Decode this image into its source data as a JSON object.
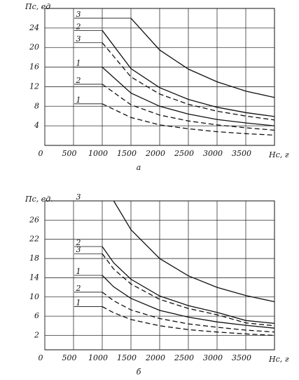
{
  "chart_data": [
    {
      "type": "line",
      "x_label": "Нс, г",
      "y_label": "Пс, ед",
      "caption": "а",
      "x": [
        1000,
        1500,
        2000,
        2500,
        3000,
        3500,
        4000
      ],
      "xlim": [
        0,
        4000
      ],
      "xticks": [
        0,
        500,
        1000,
        1500,
        2000,
        2500,
        3000,
        3500
      ],
      "ylim": [
        0,
        28
      ],
      "yticks": [
        4,
        8,
        12,
        16,
        20,
        24
      ],
      "grid": true,
      "series": [
        {
          "name": "3",
          "color": "#111",
          "dash": false,
          "values": [
            null,
            26,
            19.5,
            15.6,
            13,
            11.1,
            9.8
          ]
        },
        {
          "name": "2",
          "color": "#111",
          "dash": false,
          "values": [
            23.5,
            15.7,
            11.8,
            9.4,
            7.8,
            6.7,
            5.9
          ]
        },
        {
          "name": "3",
          "color": "#111",
          "dash": true,
          "values": [
            21,
            14,
            10.5,
            8.4,
            7,
            6,
            5.2
          ]
        },
        {
          "name": "1",
          "color": "#111",
          "dash": false,
          "values": [
            16,
            10.7,
            8,
            6.4,
            5.3,
            4.6,
            4
          ]
        },
        {
          "name": "2",
          "color": "#111",
          "dash": true,
          "values": [
            12.5,
            8.3,
            6.2,
            5,
            4.2,
            3.6,
            3.1
          ]
        },
        {
          "name": "1",
          "color": "#111",
          "dash": true,
          "values": [
            8.5,
            5.7,
            4.2,
            3.4,
            2.8,
            2.4,
            2.1
          ]
        }
      ]
    },
    {
      "type": "line",
      "x_label": "Нс, г",
      "y_label": "Пс, ед.",
      "caption": "б",
      "x": [
        1000,
        1200,
        1500,
        2000,
        2500,
        3000,
        3500,
        4000
      ],
      "xlim": [
        0,
        4000
      ],
      "xticks": [
        0,
        500,
        1000,
        1500,
        2000,
        2500,
        3000,
        3500
      ],
      "ylim": [
        -1,
        30
      ],
      "yticks": [
        2,
        6,
        10,
        14,
        18,
        22,
        26
      ],
      "grid": true,
      "series": [
        {
          "name": "3",
          "color": "#111",
          "dash": false,
          "values": [
            null,
            30,
            24,
            18,
            14.4,
            12,
            10.3,
            9
          ]
        },
        {
          "name": "2",
          "color": "#111",
          "dash": false,
          "values": [
            20.5,
            17.1,
            13.7,
            10.2,
            8.2,
            6.8,
            5.1,
            4.5
          ]
        },
        {
          "name": "3",
          "color": "#111",
          "dash": true,
          "values": [
            19,
            15.8,
            12.7,
            9.5,
            7.6,
            6.3,
            4.6,
            4
          ]
        },
        {
          "name": "1",
          "color": "#111",
          "dash": false,
          "values": [
            14.5,
            12.1,
            9.7,
            7.2,
            5.8,
            4.8,
            4.1,
            3.5
          ]
        },
        {
          "name": "2",
          "color": "#111",
          "dash": true,
          "values": [
            11,
            9.2,
            7.3,
            5.5,
            4.4,
            3.7,
            3.1,
            2.7
          ]
        },
        {
          "name": "1",
          "color": "#111",
          "dash": true,
          "values": [
            8,
            6.7,
            5.3,
            4,
            3.2,
            2.7,
            2.3,
            2
          ]
        }
      ]
    }
  ]
}
